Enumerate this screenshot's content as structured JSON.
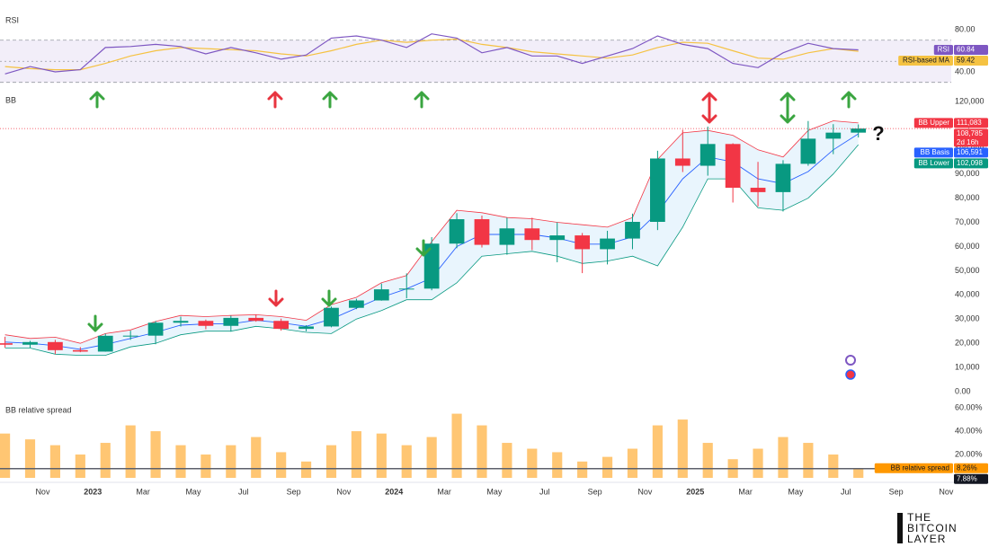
{
  "time_axis": {
    "xlim": [
      -0.2,
      37.7
    ],
    "xticks": [
      {
        "value": 1.5,
        "label": "Nov"
      },
      {
        "value": 3.5,
        "label": "2023"
      },
      {
        "value": 5.5,
        "label": "Mar"
      },
      {
        "value": 7.5,
        "label": "May"
      },
      {
        "value": 9.5,
        "label": "Jul"
      },
      {
        "value": 11.5,
        "label": "Sep"
      },
      {
        "value": 13.5,
        "label": "Nov"
      },
      {
        "value": 15.5,
        "label": "2024"
      },
      {
        "value": 17.5,
        "label": "Mar"
      },
      {
        "value": 19.5,
        "label": "May"
      },
      {
        "value": 21.5,
        "label": "Jul"
      },
      {
        "value": 23.5,
        "label": "Sep"
      },
      {
        "value": 25.5,
        "label": "Nov"
      },
      {
        "value": 27.5,
        "label": "2025"
      },
      {
        "value": 29.5,
        "label": "Mar"
      },
      {
        "value": 31.5,
        "label": "May"
      },
      {
        "value": 33.5,
        "label": "Jul"
      },
      {
        "value": 35.5,
        "label": "Sep"
      },
      {
        "value": 37.5,
        "label": "Nov"
      }
    ]
  },
  "chart_data": [
    {
      "type": "line",
      "title": "RSI",
      "ylim": [
        27.2,
        95.3
      ],
      "yticks": [
        {
          "value": 40,
          "label": "40.00"
        },
        {
          "value": 80,
          "label": "80.00"
        }
      ],
      "band": [
        30,
        70
      ],
      "midline": 50,
      "band_color": "#7e57c2",
      "series": [
        {
          "name": "RSI",
          "color": "#7e57c2",
          "last_label": "60.84",
          "values": [
            38,
            45,
            40,
            42,
            63,
            64,
            66,
            64,
            57,
            63,
            58,
            52,
            56,
            72,
            74,
            70,
            63,
            76,
            72,
            58,
            63,
            55,
            55,
            48,
            55,
            62,
            74,
            66,
            62,
            48,
            44,
            58,
            67,
            62,
            60.84
          ]
        },
        {
          "name": "RSI-based MA",
          "color": "#f5c242",
          "last_label": "59.42",
          "values": [
            45,
            43,
            42,
            42,
            48,
            55,
            60,
            63,
            62,
            61,
            60,
            57,
            55,
            60,
            66,
            70,
            68,
            70,
            71,
            66,
            63,
            59,
            57,
            55,
            53,
            56,
            63,
            68,
            67,
            60,
            53,
            52,
            58,
            62,
            59.42
          ]
        }
      ]
    },
    {
      "type": "candlestick",
      "title": "BB",
      "ylim": [
        0,
        124800
      ],
      "yticks": [
        {
          "value": 0,
          "label": "0.00"
        },
        {
          "value": 10000,
          "label": "10,000"
        },
        {
          "value": 20000,
          "label": "20,000"
        },
        {
          "value": 30000,
          "label": "30,000"
        },
        {
          "value": 40000,
          "label": "40,000"
        },
        {
          "value": 50000,
          "label": "50,000"
        },
        {
          "value": 60000,
          "label": "60,000"
        },
        {
          "value": 70000,
          "label": "70,000"
        },
        {
          "value": 80000,
          "label": "80,000"
        },
        {
          "value": 90000,
          "label": "90,000"
        },
        {
          "value": 100000,
          "label": "100,000"
        },
        {
          "value": 110000,
          "label": "110,000"
        },
        {
          "value": 120000,
          "label": "120,000"
        }
      ],
      "up_color": "#089981",
      "down_color": "#f23645",
      "fill_color": "#e3f2fd",
      "open": [
        20000,
        19400,
        20500,
        17150,
        16550,
        23100,
        23150,
        28500,
        29250,
        27200,
        30500,
        29250,
        25950,
        26950,
        34650,
        37700,
        42300,
        42600,
        61200,
        71300,
        60700,
        67500,
        62700,
        64600,
        58900,
        63300,
        70200,
        96400,
        93400,
        102400,
        84300,
        82500,
        94200,
        104600,
        107100
      ],
      "high": [
        22700,
        21000,
        21400,
        18400,
        23900,
        25200,
        29200,
        31000,
        29800,
        31400,
        31800,
        30200,
        27500,
        35200,
        38400,
        44700,
        48900,
        63900,
        73800,
        72800,
        71900,
        71900,
        70000,
        65600,
        66500,
        73600,
        99600,
        108300,
        109600,
        102700,
        95000,
        95700,
        111900,
        110600,
        110500
      ],
      "low": [
        18200,
        18200,
        15500,
        16300,
        16500,
        21400,
        19600,
        26900,
        25800,
        24800,
        28900,
        25200,
        24900,
        26600,
        34100,
        37600,
        38600,
        41900,
        59300,
        59600,
        56600,
        58500,
        53500,
        49000,
        52600,
        58900,
        66800,
        90800,
        89300,
        78200,
        76600,
        74500,
        93400,
        98200,
        105100
      ],
      "close": [
        19400,
        20500,
        17150,
        16550,
        23100,
        23150,
        28500,
        29250,
        27200,
        30500,
        29250,
        25950,
        26950,
        34650,
        37700,
        42300,
        42600,
        61200,
        71300,
        60700,
        67500,
        62700,
        64600,
        58900,
        63300,
        70200,
        96400,
        93400,
        102400,
        84300,
        82500,
        94200,
        104600,
        107100,
        108785
      ],
      "price_label": "108,785",
      "countdown": "2d 16h",
      "annotation": "?",
      "series": [
        {
          "name": "BB Upper",
          "color": "#f23645",
          "last_label": "111,083",
          "values": [
            23500,
            22000,
            22500,
            20000,
            24000,
            25500,
            29000,
            31500,
            31000,
            31500,
            31800,
            31000,
            29500,
            36000,
            39000,
            45000,
            48000,
            62000,
            75000,
            74000,
            72000,
            71500,
            70000,
            69000,
            68000,
            72000,
            96000,
            107000,
            108000,
            106000,
            100000,
            97000,
            108000,
            112000,
            111083
          ]
        },
        {
          "name": "BB Basis",
          "color": "#2962ff",
          "last_label": "106,591",
          "values": [
            20500,
            20000,
            19000,
            17500,
            19500,
            22000,
            24500,
            27500,
            28000,
            28000,
            29500,
            28500,
            27000,
            30000,
            34500,
            39000,
            42500,
            47000,
            60000,
            65000,
            65000,
            65000,
            63500,
            61000,
            61000,
            64000,
            74000,
            88000,
            97000,
            95000,
            88000,
            86000,
            91000,
            100000,
            106591
          ]
        },
        {
          "name": "BB Lower",
          "color": "#089981",
          "last_label": "102,098",
          "values": [
            18000,
            18000,
            15500,
            15000,
            15000,
            18500,
            20000,
            23500,
            25000,
            25000,
            27000,
            26000,
            24500,
            24000,
            30000,
            33500,
            38000,
            38000,
            45000,
            56000,
            57000,
            58000,
            56000,
            53000,
            54000,
            56000,
            52000,
            68000,
            88000,
            88000,
            76000,
            75000,
            80000,
            90000,
            102098
          ]
        }
      ]
    },
    {
      "type": "bar",
      "title": "BB relative spread",
      "ylim": [
        0,
        67
      ],
      "yticks": [
        {
          "value": 20,
          "label": "20.00%"
        },
        {
          "value": 40,
          "label": "40.00%"
        },
        {
          "value": 60,
          "label": "60.00%"
        }
      ],
      "series": [
        {
          "name": "BB relative spread",
          "color": "#ff9800",
          "last_label": "8.26%",
          "values": [
            38,
            33,
            28,
            20,
            30,
            45,
            40,
            28,
            20,
            28,
            35,
            22,
            14,
            28,
            40,
            38,
            28,
            35,
            55,
            45,
            30,
            25,
            22,
            14,
            18,
            25,
            45,
            50,
            30,
            16,
            25,
            35,
            30,
            20,
            8.26
          ]
        }
      ],
      "marker": {
        "value": 7.88,
        "label": "7.88%"
      }
    }
  ],
  "logo": [
    "THE",
    "BITCOIN",
    "LAYER"
  ]
}
